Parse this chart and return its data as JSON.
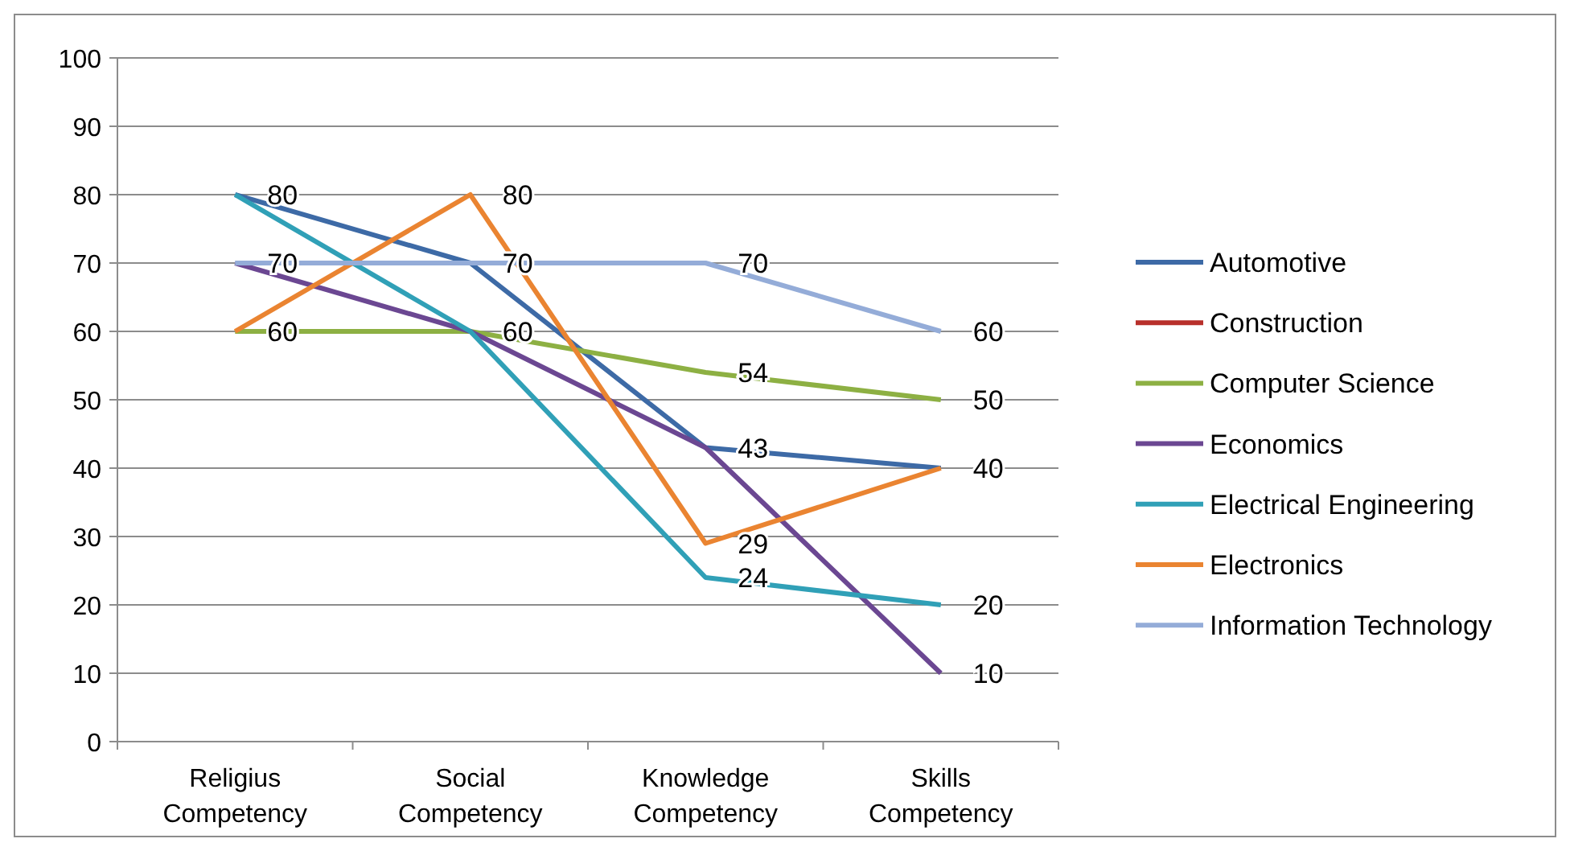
{
  "chart_data": {
    "type": "line",
    "categories": [
      "Religius Competency",
      "Social Competency",
      "Knowledge Competency",
      "Skills Competency"
    ],
    "ylim": [
      0,
      100
    ],
    "yticks": [
      0,
      10,
      20,
      30,
      40,
      50,
      60,
      70,
      80,
      90,
      100
    ],
    "grid": "y",
    "legend": "right",
    "marker": "none",
    "line_style": "solid",
    "series": [
      {
        "name": "Automotive",
        "color": "#3d6aa6",
        "values": [
          80,
          70,
          43,
          40
        ],
        "value_labels": [
          "80",
          null,
          "43",
          "40"
        ]
      },
      {
        "name": "Construction",
        "color": "#b8302b",
        "values": [
          null,
          null,
          null,
          null
        ]
      },
      {
        "name": "Computer Science",
        "color": "#8db043",
        "values": [
          60,
          60,
          54,
          50
        ],
        "value_labels": [
          "60",
          null,
          "54",
          "50"
        ]
      },
      {
        "name": "Economics",
        "color": "#6b4792",
        "values": [
          70,
          60,
          43,
          10
        ],
        "value_labels": [
          "70",
          null,
          null,
          "10"
        ]
      },
      {
        "name": "Electrical Engineering",
        "color": "#30a0b7",
        "values": [
          80,
          60,
          24,
          20
        ],
        "value_labels": [
          null,
          "60",
          "24",
          "20"
        ]
      },
      {
        "name": "Electronics",
        "color": "#ea8431",
        "values": [
          60,
          80,
          29,
          40
        ],
        "value_labels": [
          null,
          "80",
          "29",
          null
        ]
      },
      {
        "name": "Information Technology",
        "color": "#94acd8",
        "values": [
          70,
          70,
          70,
          60
        ],
        "value_labels": [
          null,
          "70",
          "70",
          "60"
        ]
      }
    ]
  }
}
